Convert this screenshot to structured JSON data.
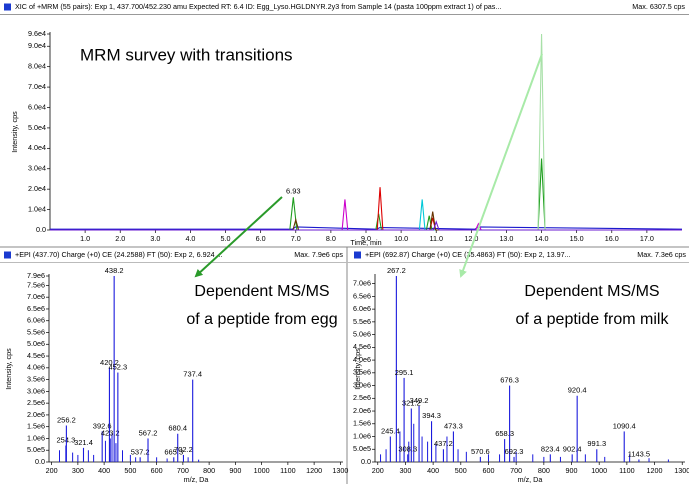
{
  "chart_data": [
    {
      "type": "line",
      "title": "XIC of +MRM (55 pairs): Exp 1, 437.700/452.230 amu Expected RT: 6.4 ID: Egg_Lyso.HGLDNYR.2y3 from Sample 14 (pasta 100ppm extract 1) of pas...",
      "max_label": "Max. 6307.5 cps",
      "annotations": [
        "MRM survey with transitions"
      ],
      "xlabel": "Time, min",
      "ylabel": "Intensity, cps",
      "xlim": [
        0,
        18
      ],
      "ylim": [
        0,
        96000
      ],
      "xticks": [
        {
          "value": 1,
          "label": "1.0"
        },
        {
          "value": 2,
          "label": "2.0"
        },
        {
          "value": 3,
          "label": "3.0"
        },
        {
          "value": 4,
          "label": "4.0"
        },
        {
          "value": 5,
          "label": "5.0"
        },
        {
          "value": 6,
          "label": "6.0"
        },
        {
          "value": 7,
          "label": "7.0"
        },
        {
          "value": 8,
          "label": "8.0"
        },
        {
          "value": 9,
          "label": "9.0"
        },
        {
          "value": 10,
          "label": "10.0"
        },
        {
          "value": 11,
          "label": "11.0"
        },
        {
          "value": 12,
          "label": "12.0"
        },
        {
          "value": 13,
          "label": "13.0"
        },
        {
          "value": 14,
          "label": "14.0"
        },
        {
          "value": 15,
          "label": "15.0"
        },
        {
          "value": 16,
          "label": "16.0"
        },
        {
          "value": 17,
          "label": "17.0"
        }
      ],
      "yticks": [
        {
          "value": 0,
          "label": "0.0"
        },
        {
          "value": 10000,
          "label": "1.0e4"
        },
        {
          "value": 20000,
          "label": "2.0e4"
        },
        {
          "value": 30000,
          "label": "3.0e4"
        },
        {
          "value": 40000,
          "label": "4.0e4"
        },
        {
          "value": 50000,
          "label": "5.0e4"
        },
        {
          "value": 60000,
          "label": "6.0e4"
        },
        {
          "value": 70000,
          "label": "7.0e4"
        },
        {
          "value": 80000,
          "label": "8.0e4"
        },
        {
          "value": 90000,
          "label": "9.0e4"
        },
        {
          "value": 96000,
          "label": "9.6e4"
        }
      ],
      "peak_label": {
        "series": 1,
        "index": 2
      },
      "series": [
        {
          "color": "#1a1acc",
          "x": [
            0,
            6.9,
            7.0,
            9.3,
            9.4,
            12.1,
            12.2,
            18
          ],
          "values": [
            400,
            400,
            1500,
            400,
            1200,
            400,
            1500,
            400
          ]
        },
        {
          "color": "#1e9e1e",
          "x": [
            0,
            6.83,
            6.93,
            7.03,
            9.28,
            9.36,
            9.44,
            10.72,
            10.8,
            10.88,
            13.9,
            14.0,
            14.1,
            18
          ],
          "values": [
            0,
            0,
            16000,
            0,
            0,
            8000,
            0,
            0,
            7000,
            0,
            0,
            35000,
            0,
            0
          ]
        },
        {
          "color": "#a8e0a8",
          "x": [
            0,
            13.9,
            14.0,
            14.1,
            18
          ],
          "values": [
            0,
            0,
            96000,
            0,
            0
          ]
        },
        {
          "color": "#cc00cc",
          "x": [
            0,
            8.32,
            8.4,
            8.48,
            12.12,
            12.2,
            12.28,
            18
          ],
          "values": [
            0,
            0,
            15000,
            0,
            0,
            3000,
            0,
            0
          ]
        },
        {
          "color": "#dd0000",
          "x": [
            0,
            9.32,
            9.4,
            9.48,
            10.82,
            10.9,
            10.98,
            18
          ],
          "values": [
            0,
            0,
            21000,
            0,
            0,
            6000,
            0,
            0
          ]
        },
        {
          "color": "#00c8d8",
          "x": [
            0,
            10.52,
            10.6,
            10.68,
            18
          ],
          "values": [
            0,
            0,
            15000,
            0,
            0
          ]
        },
        {
          "color": "#663300",
          "x": [
            0,
            6.92,
            7.0,
            7.08,
            10.82,
            10.9,
            10.98,
            18
          ],
          "values": [
            0,
            0,
            5000,
            0,
            0,
            9000,
            0,
            0
          ]
        },
        {
          "color": "#6a1ad0",
          "x": [
            0,
            10.92,
            11.0,
            11.08,
            18
          ],
          "values": [
            0,
            0,
            4000,
            0,
            0
          ]
        }
      ]
    },
    {
      "type": "stem",
      "title": "+EPI (437.70) Charge (+0) CE (24.2588) FT (50): Exp 2, 6.924 ...",
      "max_label": "Max. 7.9e6 cps",
      "annotations": [
        "Dependent MS/MS",
        "of a peptide from egg"
      ],
      "xlabel": "m/z, Da",
      "ylabel": "Intensity, cps",
      "color": "#1a1add",
      "xlim": [
        190,
        1310
      ],
      "ylim": [
        0,
        7900000
      ],
      "xticks": [
        200,
        300,
        400,
        500,
        600,
        700,
        800,
        900,
        1000,
        1100,
        1200,
        1300
      ],
      "yticks": [
        {
          "value": 0,
          "label": "0.0"
        },
        {
          "value": 500000,
          "label": "5.0e5"
        },
        {
          "value": 1000000,
          "label": "1.0e6"
        },
        {
          "value": 1500000,
          "label": "1.5e6"
        },
        {
          "value": 2000000,
          "label": "2.0e6"
        },
        {
          "value": 2500000,
          "label": "2.5e6"
        },
        {
          "value": 3000000,
          "label": "3.0e6"
        },
        {
          "value": 3500000,
          "label": "3.5e6"
        },
        {
          "value": 4000000,
          "label": "4.0e6"
        },
        {
          "value": 4500000,
          "label": "4.5e6"
        },
        {
          "value": 5000000,
          "label": "5.0e6"
        },
        {
          "value": 5500000,
          "label": "5.5e6"
        },
        {
          "value": 6000000,
          "label": "6.0e6"
        },
        {
          "value": 6500000,
          "label": "6.5e6"
        },
        {
          "value": 7000000,
          "label": "7.0e6"
        },
        {
          "value": 7500000,
          "label": "7.5e6"
        },
        {
          "value": 7900000,
          "label": "7.9e6"
        }
      ],
      "x": [
        254.3,
        256.2,
        321.4,
        392.6,
        420.2,
        423.2,
        438.2,
        452.3,
        537.2,
        567.2,
        665.3,
        680.4,
        702.2,
        737.4
      ],
      "values": [
        700000,
        1550000,
        600000,
        1300000,
        4000000,
        1000000,
        7900000,
        3800000,
        200000,
        1000000,
        200000,
        1200000,
        300000,
        3500000
      ],
      "minor": {
        "x": [
          230,
          280,
          300,
          340,
          360,
          405,
          430,
          445,
          470,
          500,
          520,
          600,
          640,
          720,
          760
        ],
        "values": [
          500000,
          400000,
          300000,
          500000,
          300000,
          900000,
          1200000,
          800000,
          500000,
          300000,
          200000,
          200000,
          150000,
          200000,
          100000
        ]
      }
    },
    {
      "type": "stem",
      "title": "+EPI (692.87) Charge (+0) CE (35.4863) FT (50): Exp 2, 13.97...",
      "max_label": "Max. 7.3e6 cps",
      "annotations": [
        "Dependent MS/MS",
        "of a peptide from milk"
      ],
      "xlabel": "m/z, Da",
      "ylabel": "Intensity, cps",
      "color": "#1a1add",
      "xlim": [
        190,
        1310
      ],
      "ylim": [
        0,
        7300000
      ],
      "xticks": [
        200,
        300,
        400,
        500,
        600,
        700,
        800,
        900,
        1000,
        1100,
        1200,
        1300
      ],
      "yticks": [
        {
          "value": 0,
          "label": "0.0"
        },
        {
          "value": 500000,
          "label": "5.0e5"
        },
        {
          "value": 1000000,
          "label": "1.0e6"
        },
        {
          "value": 1500000,
          "label": "1.5e6"
        },
        {
          "value": 2000000,
          "label": "2.0e6"
        },
        {
          "value": 2500000,
          "label": "2.5e6"
        },
        {
          "value": 3000000,
          "label": "3.0e6"
        },
        {
          "value": 3500000,
          "label": "3.5e6"
        },
        {
          "value": 4000000,
          "label": "4.0e6"
        },
        {
          "value": 4500000,
          "label": "4.5e6"
        },
        {
          "value": 5000000,
          "label": "5.0e6"
        },
        {
          "value": 5500000,
          "label": "5.5e6"
        },
        {
          "value": 6000000,
          "label": "6.0e6"
        },
        {
          "value": 6500000,
          "label": "6.5e6"
        },
        {
          "value": 7000000,
          "label": "7.0e6"
        }
      ],
      "x": [
        245.4,
        267.2,
        295.1,
        308.3,
        321.2,
        349.2,
        394.3,
        437.2,
        473.3,
        570.6,
        658.3,
        676.3,
        692.3,
        823.4,
        902.4,
        920.4,
        991.3,
        1090.4,
        1143.5
      ],
      "values": [
        1000000,
        7300000,
        3300000,
        300000,
        2100000,
        2200000,
        1600000,
        500000,
        1200000,
        200000,
        900000,
        3000000,
        200000,
        300000,
        300000,
        2600000,
        500000,
        1200000,
        100000
      ],
      "minor": {
        "x": [
          210,
          230,
          280,
          312,
          330,
          360,
          380,
          410,
          450,
          490,
          520,
          600,
          640,
          700,
          760,
          800,
          860,
          950,
          1020,
          1110,
          1180,
          1250
        ],
        "values": [
          300000,
          500000,
          1200000,
          800000,
          1500000,
          1000000,
          800000,
          700000,
          1000000,
          500000,
          400000,
          300000,
          300000,
          400000,
          300000,
          200000,
          200000,
          300000,
          200000,
          300000,
          150000,
          100000
        ]
      }
    }
  ]
}
